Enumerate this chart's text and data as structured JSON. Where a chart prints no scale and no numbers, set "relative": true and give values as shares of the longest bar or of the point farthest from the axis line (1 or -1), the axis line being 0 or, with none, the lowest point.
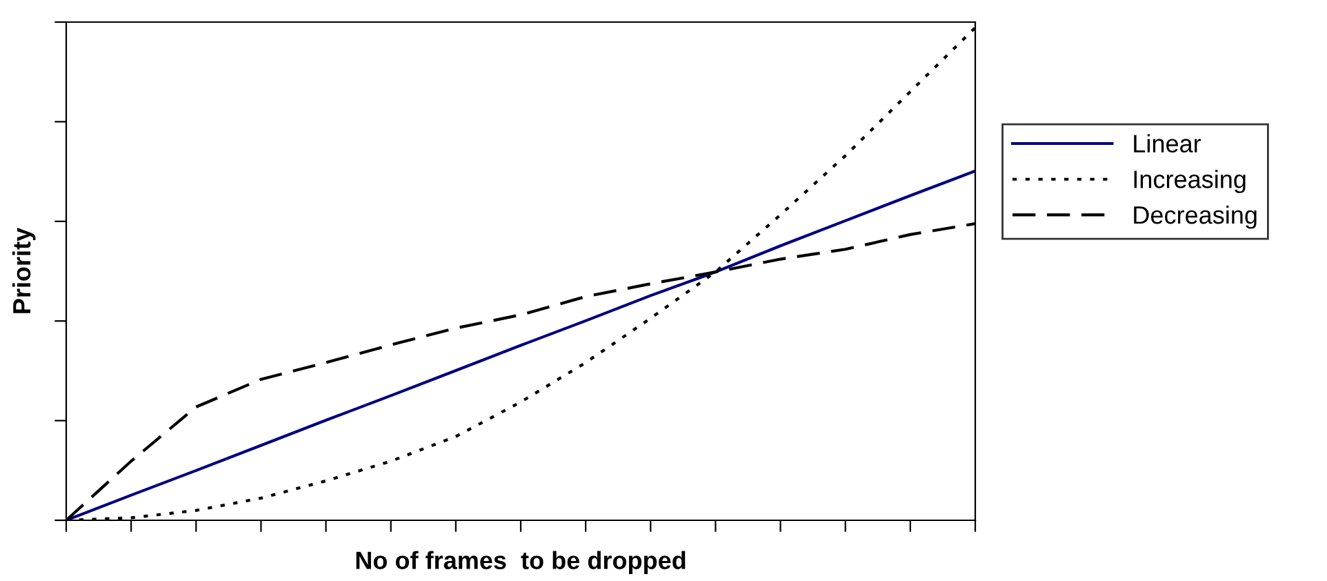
{
  "chart_data": {
    "type": "line",
    "relative": true,
    "xlabel": "No of frames  to be dropped",
    "ylabel": "Priority",
    "categories": [
      null,
      null,
      null,
      null,
      null,
      null,
      null,
      null,
      null,
      null,
      null,
      null,
      null,
      null,
      null
    ],
    "series": [
      {
        "name": "Linear",
        "color": "#000080",
        "line_style": "solid",
        "values": [
          0,
          0.051,
          0.101,
          0.152,
          0.203,
          0.253,
          0.304,
          0.355,
          0.405,
          0.456,
          0.504,
          0.557,
          0.608,
          0.659,
          0.709
        ]
      },
      {
        "name": "Increasing",
        "color": "#000000",
        "line_style": "dotted",
        "values": [
          0,
          0.005,
          0.02,
          0.045,
          0.08,
          0.12,
          0.17,
          0.24,
          0.32,
          0.41,
          0.504,
          0.62,
          0.74,
          0.87,
          1.0
        ]
      },
      {
        "name": "Decreasing",
        "color": "#000000",
        "line_style": "dashed",
        "values": [
          0,
          0.12,
          0.23,
          0.286,
          0.32,
          0.356,
          0.39,
          0.417,
          0.454,
          0.48,
          0.504,
          0.53,
          0.55,
          0.58,
          0.602
        ]
      }
    ],
    "tick_labels": false,
    "grid": false,
    "legend": "right",
    "marker": "none"
  }
}
